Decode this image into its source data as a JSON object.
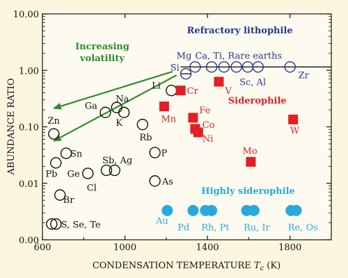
{
  "chart_data": {
    "type": "scatter",
    "xlabel": "CONDENSATION TEMPERATURE",
    "xlabel_symbol": "T",
    "xlabel_sub": "c",
    "xlabel_unit": " (K)",
    "ylabel": "ABUNDANCE RATIO",
    "xlim": [
      600,
      2000
    ],
    "ylim": [
      0.001,
      10
    ],
    "yscale": "log",
    "x_ticks": [
      {
        "v": 600,
        "t": "600"
      },
      {
        "v": 1000,
        "t": "1000"
      },
      {
        "v": 1400,
        "t": "1400"
      },
      {
        "v": 1800,
        "t": "1800"
      }
    ],
    "y_ticks": [
      {
        "v": 0.001,
        "t": "0.00"
      },
      {
        "v": 0.01,
        "t": "0.01"
      },
      {
        "v": 0.1,
        "t": "0.10"
      },
      {
        "v": 1,
        "t": "1.00"
      },
      {
        "v": 10,
        "t": "10.00"
      }
    ],
    "colors": {
      "volatile": "#111111",
      "refractory": "#283593",
      "siderophile": "#e31e24",
      "highly": "#29a8e0",
      "arrow": "#2e8b2e"
    },
    "reference_line": {
      "y": 1.15,
      "from_x": 1270,
      "to_x": 2000
    },
    "groups": [
      {
        "name": "Refractory lithophile",
        "color": "refractory",
        "gx": 1300,
        "gy": 4.5
      },
      {
        "name": "Siderophile",
        "color": "siderophile",
        "gx": 1500,
        "gy": 0.26
      },
      {
        "name": "Highly siderophile",
        "color": "highly",
        "gx": 1370,
        "gy": 0.0065
      }
    ],
    "arrow_label_lines": [
      "Increasing",
      "volatility"
    ],
    "arrow_label_pos": {
      "x": 890,
      "y": 1.5
    },
    "arrows": [
      {
        "from": {
          "x": 1230,
          "y": 0.95
        },
        "to": {
          "x": 650,
          "y": 0.21
        }
      },
      {
        "from": {
          "x": 1250,
          "y": 0.82
        },
        "to": {
          "x": 650,
          "y": 0.055
        }
      }
    ],
    "series": [
      {
        "name": "Volatile",
        "color": "volatile",
        "marker": "open-circle",
        "points": [
          {
            "x": 655,
            "y": 0.075
          },
          {
            "x": 665,
            "y": 0.023
          },
          {
            "x": 715,
            "y": 0.034
          },
          {
            "x": 685,
            "y": 0.0062
          },
          {
            "x": 820,
            "y": 0.015
          },
          {
            "x": 910,
            "y": 0.017
          },
          {
            "x": 950,
            "y": 0.017
          },
          {
            "x": 905,
            "y": 0.18
          },
          {
            "x": 960,
            "y": 0.22
          },
          {
            "x": 995,
            "y": 0.18
          },
          {
            "x": 1085,
            "y": 0.11
          },
          {
            "x": 1145,
            "y": 0.035
          },
          {
            "x": 1145,
            "y": 0.011
          },
          {
            "x": 1225,
            "y": 0.44
          },
          {
            "x": 645,
            "y": 0.0019
          },
          {
            "x": 665,
            "y": 0.0019
          }
        ]
      },
      {
        "name": "Refractory",
        "color": "refractory",
        "marker": "open-circle-bar",
        "points": [
          {
            "x": 1295,
            "y": 0.87
          },
          {
            "x": 1340,
            "y": 1.15
          },
          {
            "x": 1420,
            "y": 1.15
          },
          {
            "x": 1480,
            "y": 1.15
          },
          {
            "x": 1540,
            "y": 1.15
          },
          {
            "x": 1595,
            "y": 1.15
          },
          {
            "x": 1645,
            "y": 1.15
          },
          {
            "x": 1800,
            "y": 1.15
          }
        ]
      },
      {
        "name": "Siderophile",
        "color": "siderophile",
        "marker": "square",
        "points": [
          {
            "x": 1270,
            "y": 0.44
          },
          {
            "x": 1455,
            "y": 0.63
          },
          {
            "x": 1190,
            "y": 0.23
          },
          {
            "x": 1330,
            "y": 0.145
          },
          {
            "x": 1340,
            "y": 0.092
          },
          {
            "x": 1355,
            "y": 0.08
          },
          {
            "x": 1610,
            "y": 0.024
          },
          {
            "x": 1815,
            "y": 0.135
          }
        ]
      },
      {
        "name": "Highly siderophile",
        "color": "highly",
        "marker": "filled-circle",
        "points": [
          {
            "x": 1205,
            "y": 0.0033
          },
          {
            "x": 1330,
            "y": 0.0033
          },
          {
            "x": 1390,
            "y": 0.0033
          },
          {
            "x": 1420,
            "y": 0.0033
          },
          {
            "x": 1590,
            "y": 0.0033
          },
          {
            "x": 1625,
            "y": 0.0033
          },
          {
            "x": 1805,
            "y": 0.0033
          },
          {
            "x": 1830,
            "y": 0.0033
          }
        ]
      }
    ],
    "labels": [
      {
        "text": "Zn",
        "x": 625,
        "y": 0.13,
        "color": "volatile"
      },
      {
        "text": "Sn",
        "x": 735,
        "y": 0.034,
        "color": "volatile"
      },
      {
        "text": "Pb",
        "x": 615,
        "y": 0.015,
        "color": "volatile"
      },
      {
        "text": "Ge",
        "x": 720,
        "y": 0.015,
        "color": "volatile"
      },
      {
        "text": "Br",
        "x": 700,
        "y": 0.0052,
        "color": "volatile"
      },
      {
        "text": "Cl",
        "x": 815,
        "y": 0.0085,
        "color": "volatile"
      },
      {
        "text": "Sb, Ag",
        "x": 890,
        "y": 0.026,
        "color": "volatile"
      },
      {
        "text": "Ga",
        "x": 805,
        "y": 0.24,
        "color": "volatile"
      },
      {
        "text": "Na",
        "x": 955,
        "y": 0.32,
        "color": "volatile"
      },
      {
        "text": "K",
        "x": 955,
        "y": 0.12,
        "color": "volatile"
      },
      {
        "text": "Rb",
        "x": 1070,
        "y": 0.066,
        "color": "volatile"
      },
      {
        "text": "P",
        "x": 1175,
        "y": 0.035,
        "color": "volatile"
      },
      {
        "text": "As",
        "x": 1180,
        "y": 0.011,
        "color": "volatile"
      },
      {
        "text": "Li",
        "x": 1130,
        "y": 0.55,
        "color": "volatile"
      },
      {
        "text": "S, Se, Te",
        "x": 690,
        "y": 0.0019,
        "color": "volatile"
      },
      {
        "text": "Mg",
        "x": 1250,
        "y": 1.85,
        "color": "refractory"
      },
      {
        "text": "Si",
        "x": 1220,
        "y": 1.15,
        "color": "refractory"
      },
      {
        "text": "Ca, Ti, Rare earths",
        "x": 1340,
        "y": 1.85,
        "color": "refractory"
      },
      {
        "text": "Sc, Al",
        "x": 1555,
        "y": 0.63,
        "color": "refractory"
      },
      {
        "text": "Zr",
        "x": 1840,
        "y": 0.84,
        "color": "refractory"
      },
      {
        "text": "Cr",
        "x": 1300,
        "y": 0.44,
        "color": "siderophile"
      },
      {
        "text": "V",
        "x": 1485,
        "y": 0.44,
        "color": "siderophile"
      },
      {
        "text": "Mn",
        "x": 1175,
        "y": 0.14,
        "color": "siderophile"
      },
      {
        "text": "Fe",
        "x": 1360,
        "y": 0.2,
        "color": "siderophile"
      },
      {
        "text": "Co",
        "x": 1375,
        "y": 0.11,
        "color": "siderophile"
      },
      {
        "text": "Ni",
        "x": 1375,
        "y": 0.063,
        "color": "siderophile"
      },
      {
        "text": "Mo",
        "x": 1570,
        "y": 0.038,
        "color": "siderophile"
      },
      {
        "text": "W",
        "x": 1800,
        "y": 0.088,
        "color": "siderophile"
      },
      {
        "text": "Au",
        "x": 1150,
        "y": 0.0022,
        "color": "highly"
      },
      {
        "text": "Pd",
        "x": 1255,
        "y": 0.0017,
        "color": "highly"
      },
      {
        "text": "Rh, Pt",
        "x": 1370,
        "y": 0.0017,
        "color": "highly"
      },
      {
        "text": "Ru, Ir",
        "x": 1575,
        "y": 0.0017,
        "color": "highly"
      },
      {
        "text": "Re, Os",
        "x": 1790,
        "y": 0.0017,
        "color": "highly"
      }
    ]
  }
}
